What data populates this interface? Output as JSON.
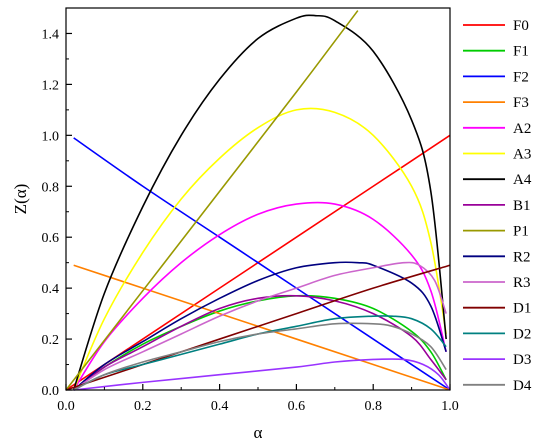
{
  "chart_data": {
    "type": "line",
    "xlabel": "α",
    "ylabel": "Z(α)",
    "xlim": [
      0.0,
      1.0
    ],
    "ylim": [
      0.0,
      1.5
    ],
    "xticks": [
      "0.0",
      "0.2",
      "0.4",
      "0.6",
      "0.8",
      "1.0"
    ],
    "yticks": [
      "0.0",
      "0.2",
      "0.4",
      "0.6",
      "0.8",
      "1.0",
      "1.2",
      "1.4"
    ],
    "grid": false,
    "legend_position": "right",
    "series": [
      {
        "name": "F0",
        "color": "#ff0000",
        "x": [
          0.0,
          0.2,
          0.4,
          0.6,
          0.8,
          1.0
        ],
        "y": [
          0.0,
          0.2,
          0.4,
          0.6,
          0.8,
          1.0
        ]
      },
      {
        "name": "F1",
        "color": "#00cc00",
        "x": [
          0.02,
          0.1,
          0.2,
          0.3,
          0.4,
          0.5,
          0.6,
          0.7,
          0.8,
          0.9,
          0.95,
          0.99
        ],
        "y": [
          0.0,
          0.09,
          0.18,
          0.25,
          0.31,
          0.35,
          0.37,
          0.36,
          0.32,
          0.23,
          0.15,
          0.04
        ]
      },
      {
        "name": "F2",
        "color": "#0000ff",
        "x": [
          0.02,
          0.2,
          0.4,
          0.6,
          0.8,
          1.0
        ],
        "y": [
          0.99,
          0.8,
          0.6,
          0.4,
          0.2,
          0.0
        ]
      },
      {
        "name": "F3",
        "color": "#ff8000",
        "x": [
          0.02,
          0.2,
          0.4,
          0.6,
          0.8,
          1.0
        ],
        "y": [
          0.49,
          0.4,
          0.3,
          0.2,
          0.1,
          0.0
        ]
      },
      {
        "name": "A2",
        "color": "#ff00ff",
        "x": [
          0.02,
          0.1,
          0.2,
          0.3,
          0.4,
          0.5,
          0.6,
          0.7,
          0.8,
          0.9,
          0.95,
          0.99
        ],
        "y": [
          0.0,
          0.19,
          0.36,
          0.5,
          0.61,
          0.69,
          0.73,
          0.73,
          0.67,
          0.53,
          0.39,
          0.15
        ]
      },
      {
        "name": "A3",
        "color": "#ffff00",
        "x": [
          0.02,
          0.1,
          0.2,
          0.3,
          0.4,
          0.5,
          0.6,
          0.7,
          0.8,
          0.9,
          0.95,
          0.99
        ],
        "y": [
          0.0,
          0.28,
          0.54,
          0.75,
          0.91,
          1.03,
          1.1,
          1.09,
          1.0,
          0.8,
          0.58,
          0.22
        ]
      },
      {
        "name": "A4",
        "color": "#000000",
        "x": [
          0.02,
          0.1,
          0.2,
          0.3,
          0.4,
          0.5,
          0.6,
          0.65,
          0.7,
          0.8,
          0.9,
          0.95,
          0.99
        ],
        "y": [
          0.0,
          0.38,
          0.72,
          1.0,
          1.22,
          1.38,
          1.46,
          1.47,
          1.45,
          1.33,
          1.06,
          0.78,
          0.2
        ]
      },
      {
        "name": "B1",
        "color": "#990099",
        "x": [
          0.02,
          0.1,
          0.2,
          0.3,
          0.4,
          0.5,
          0.6,
          0.7,
          0.8,
          0.9,
          0.95,
          0.99
        ],
        "y": [
          0.0,
          0.09,
          0.17,
          0.25,
          0.32,
          0.36,
          0.37,
          0.35,
          0.3,
          0.21,
          0.12,
          0.04
        ]
      },
      {
        "name": "P1",
        "color": "#999900",
        "x": [
          0.0,
          0.2,
          0.4,
          0.6,
          0.76
        ],
        "y": [
          0.0,
          0.39,
          0.78,
          1.17,
          1.49
        ]
      },
      {
        "name": "R2",
        "color": "#000080",
        "x": [
          0.02,
          0.1,
          0.2,
          0.3,
          0.4,
          0.5,
          0.6,
          0.7,
          0.76,
          0.8,
          0.9,
          0.95,
          0.99
        ],
        "y": [
          0.0,
          0.1,
          0.19,
          0.28,
          0.36,
          0.43,
          0.48,
          0.5,
          0.5,
          0.49,
          0.42,
          0.33,
          0.15
        ]
      },
      {
        "name": "R3",
        "color": "#cc66cc",
        "x": [
          0.02,
          0.1,
          0.2,
          0.3,
          0.4,
          0.5,
          0.6,
          0.7,
          0.8,
          0.88,
          0.92,
          0.96,
          0.99
        ],
        "y": [
          0.0,
          0.08,
          0.15,
          0.22,
          0.29,
          0.35,
          0.4,
          0.45,
          0.48,
          0.5,
          0.49,
          0.43,
          0.3
        ]
      },
      {
        "name": "D1",
        "color": "#800000",
        "x": [
          0.0,
          0.2,
          0.4,
          0.6,
          0.8,
          1.0
        ],
        "y": [
          0.0,
          0.1,
          0.2,
          0.3,
          0.4,
          0.49
        ]
      },
      {
        "name": "D2",
        "color": "#008080",
        "x": [
          0.02,
          0.1,
          0.2,
          0.3,
          0.4,
          0.5,
          0.6,
          0.7,
          0.8,
          0.85,
          0.9,
          0.95,
          0.99
        ],
        "y": [
          0.0,
          0.06,
          0.1,
          0.14,
          0.18,
          0.22,
          0.25,
          0.28,
          0.29,
          0.29,
          0.28,
          0.24,
          0.17
        ]
      },
      {
        "name": "D3",
        "color": "#9933ff",
        "x": [
          0.02,
          0.2,
          0.4,
          0.6,
          0.7,
          0.8,
          0.88,
          0.93,
          0.97,
          1.0
        ],
        "y": [
          0.0,
          0.03,
          0.06,
          0.09,
          0.11,
          0.12,
          0.12,
          0.1,
          0.06,
          0.0
        ]
      },
      {
        "name": "D4",
        "color": "#808080",
        "x": [
          0.02,
          0.1,
          0.2,
          0.3,
          0.4,
          0.5,
          0.6,
          0.7,
          0.8,
          0.85,
          0.9,
          0.95,
          0.99
        ],
        "y": [
          0.0,
          0.06,
          0.11,
          0.15,
          0.19,
          0.22,
          0.24,
          0.26,
          0.26,
          0.25,
          0.22,
          0.17,
          0.08
        ]
      }
    ]
  }
}
